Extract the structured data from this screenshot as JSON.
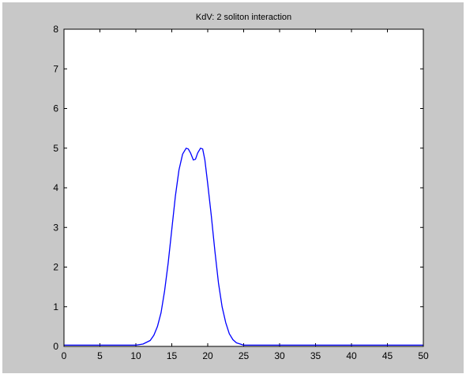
{
  "window": {
    "background": "#c8c8c8",
    "axes_background": "#ffffff"
  },
  "chart_data": {
    "type": "line",
    "title": "KdV: 2 soliton interaction",
    "xlabel": "",
    "ylabel": "",
    "xlim": [
      0,
      50
    ],
    "ylim": [
      0,
      8
    ],
    "xticks": [
      0,
      5,
      10,
      15,
      20,
      25,
      30,
      35,
      40,
      45,
      50
    ],
    "yticks": [
      0,
      1,
      2,
      3,
      4,
      5,
      6,
      7,
      8
    ],
    "grid": false,
    "series": [
      {
        "color": "#0000ff",
        "x": [
          0,
          5,
          9,
          10,
          11,
          12,
          12.5,
          13,
          13.5,
          14,
          14.5,
          15,
          15.5,
          16,
          16.5,
          17,
          17.3,
          17.6,
          18,
          18.3,
          18.6,
          19,
          19.3,
          19.6,
          20,
          20.5,
          21,
          21.5,
          22,
          22.5,
          23,
          23.5,
          24,
          25,
          26,
          27,
          30,
          40,
          50
        ],
        "y": [
          0,
          0,
          0.01,
          0.02,
          0.06,
          0.15,
          0.28,
          0.5,
          0.85,
          1.4,
          2.1,
          2.95,
          3.8,
          4.45,
          4.85,
          5.0,
          4.98,
          4.88,
          4.7,
          4.72,
          4.88,
          5.0,
          4.98,
          4.7,
          4.1,
          3.3,
          2.4,
          1.6,
          1.0,
          0.6,
          0.32,
          0.17,
          0.09,
          0.03,
          0.01,
          0,
          0,
          0,
          0
        ]
      }
    ]
  }
}
